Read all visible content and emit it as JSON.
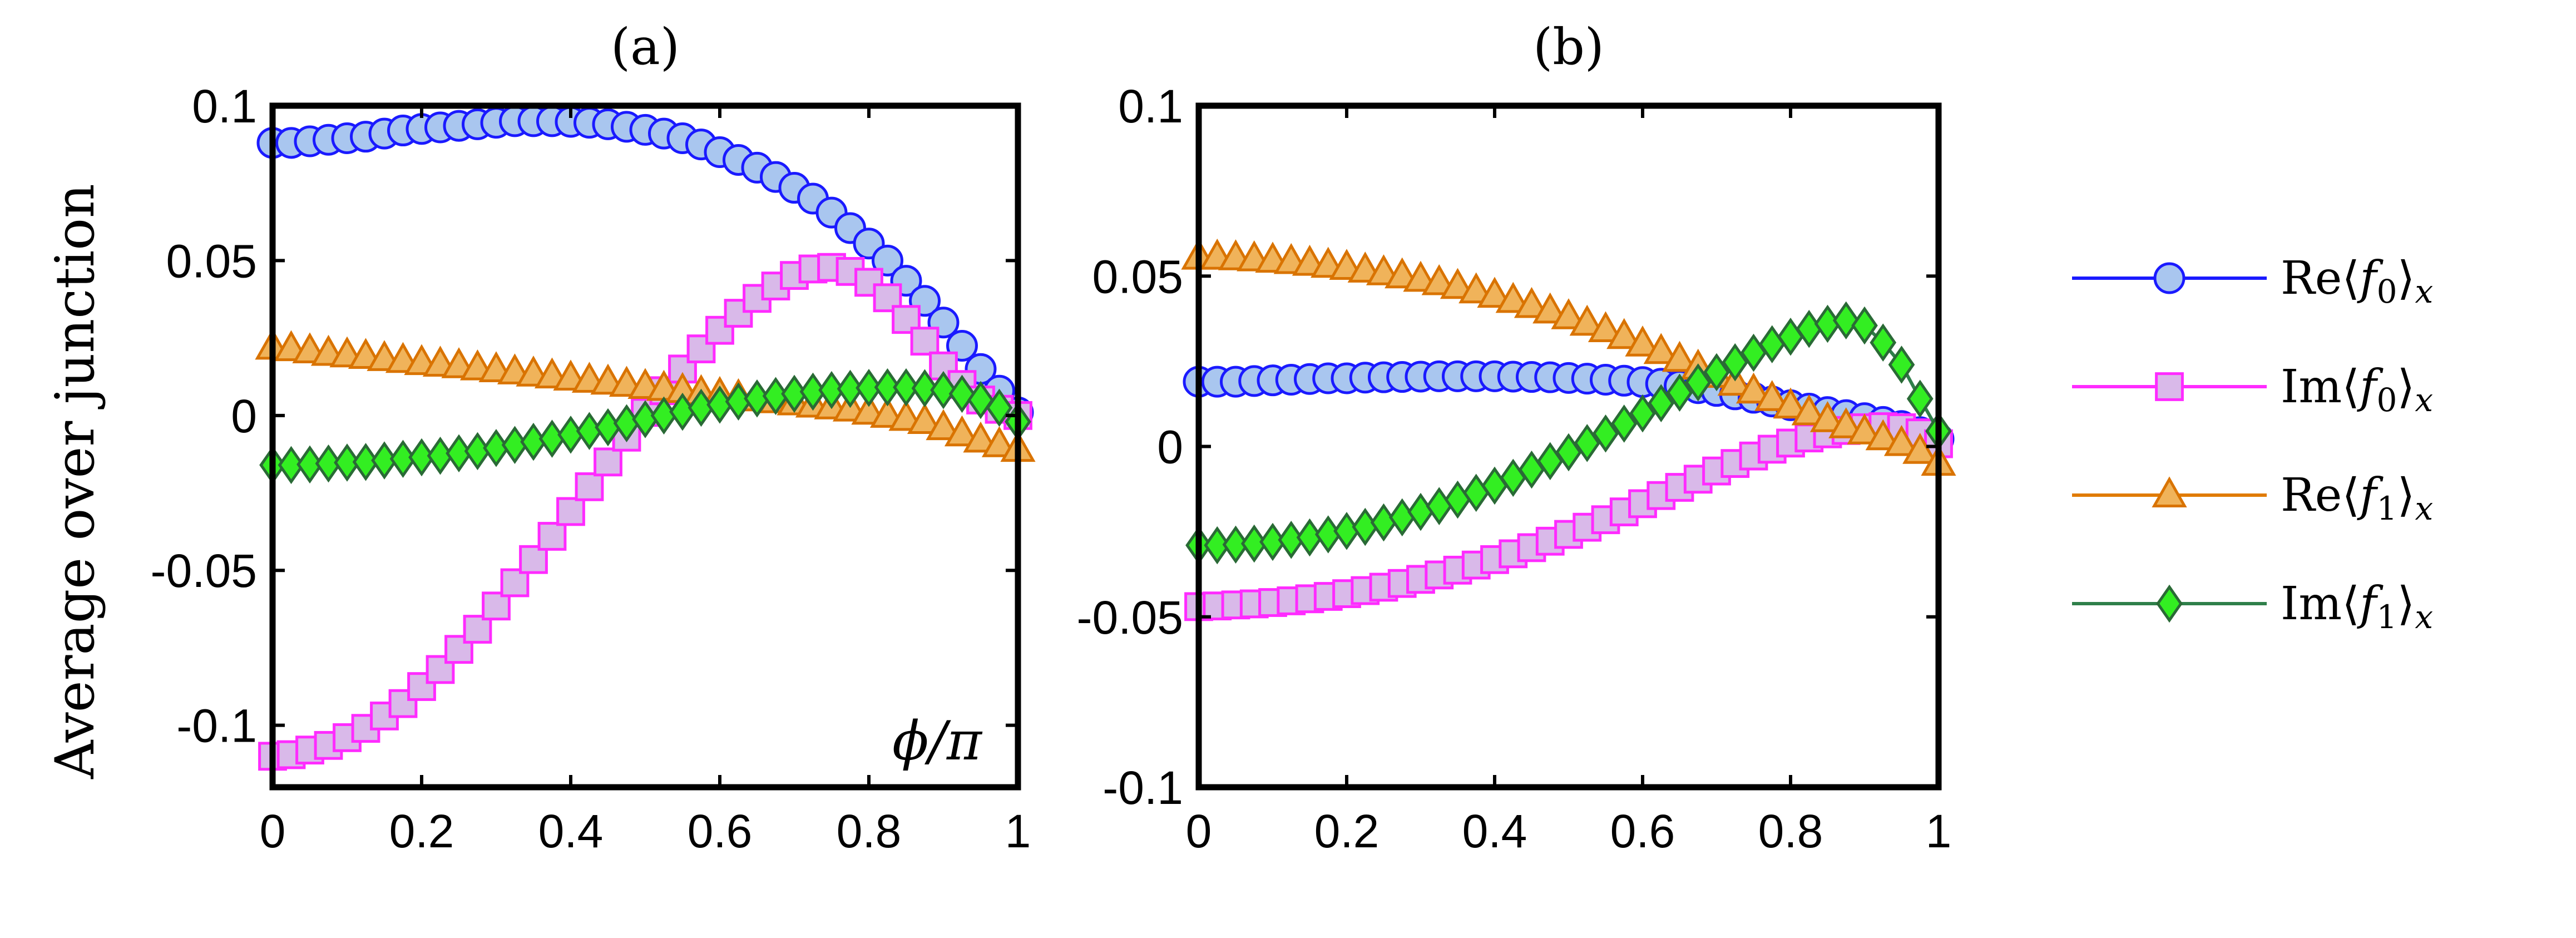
{
  "figure": {
    "ylabel": "Average over junction",
    "legend": [
      {
        "key": "re_f0",
        "prefix": "Re",
        "f": "f",
        "sub": "0",
        "suffix": "x"
      },
      {
        "key": "im_f0",
        "prefix": "Im",
        "f": "f",
        "sub": "0",
        "suffix": "x"
      },
      {
        "key": "re_f1",
        "prefix": "Re",
        "f": "f",
        "sub": "1",
        "suffix": "x"
      },
      {
        "key": "im_f1",
        "prefix": "Im",
        "f": "f",
        "sub": "1",
        "suffix": "x"
      }
    ]
  },
  "styles": {
    "re_f0": {
      "line": "#1a1aff",
      "fill": "#a9c6ef",
      "stroke": "#1a1aff",
      "marker": "circle"
    },
    "im_f0": {
      "line": "#ff2bff",
      "fill": "#d9b9e9",
      "stroke": "#ff2bff",
      "marker": "square"
    },
    "re_f1": {
      "line": "#e07b00",
      "fill": "#f0b35a",
      "stroke": "#d97300",
      "marker": "triangle"
    },
    "im_f1": {
      "line": "#2f7f4a",
      "fill": "#33ee22",
      "stroke": "#2a6a36",
      "marker": "diamond"
    }
  },
  "chart_data": [
    {
      "id": "a",
      "type": "line",
      "title": "(a)",
      "annotation": "ϕ/π",
      "xlabel": "",
      "ylabel": "Average over junction",
      "xlim": [
        0,
        1
      ],
      "ylim": [
        -0.12,
        0.1
      ],
      "xticks": [
        "0",
        "0.2",
        "0.4",
        "0.6",
        "0.8",
        "1"
      ],
      "yticks": [
        "0.1",
        "0.05",
        "0",
        "-0.05",
        "-0.1"
      ],
      "ytick_values": [
        0.1,
        0.05,
        0,
        -0.05,
        -0.1
      ],
      "xtick_values": [
        0,
        0.2,
        0.4,
        0.6,
        0.8,
        1
      ],
      "x_step": 0.025,
      "series": [
        {
          "key": "re_f0",
          "name": "Re⟨f0⟩x",
          "values": [
            0.088,
            0.088,
            0.0885,
            0.089,
            0.0895,
            0.09,
            0.091,
            0.092,
            0.0925,
            0.093,
            0.0935,
            0.094,
            0.0945,
            0.095,
            0.095,
            0.095,
            0.0948,
            0.0945,
            0.094,
            0.0932,
            0.0922,
            0.091,
            0.0895,
            0.0875,
            0.085,
            0.0825,
            0.08,
            0.077,
            0.0735,
            0.07,
            0.0655,
            0.0605,
            0.0555,
            0.05,
            0.0435,
            0.037,
            0.03,
            0.0225,
            0.015,
            0.008,
            0.001
          ]
        },
        {
          "key": "im_f0",
          "name": "Im⟨f0⟩x",
          "values": [
            -0.11,
            -0.1095,
            -0.108,
            -0.1065,
            -0.104,
            -0.101,
            -0.097,
            -0.093,
            -0.0875,
            -0.082,
            -0.0755,
            -0.069,
            -0.0615,
            -0.054,
            -0.0465,
            -0.039,
            -0.031,
            -0.023,
            -0.015,
            -0.007,
            0.001,
            0.008,
            0.015,
            0.0215,
            0.0275,
            0.033,
            0.0378,
            0.0418,
            0.0452,
            0.0473,
            0.0478,
            0.0465,
            0.043,
            0.038,
            0.031,
            0.024,
            0.016,
            0.01,
            0.005,
            0.002,
            0.0
          ]
        },
        {
          "key": "re_f1",
          "name": "Re⟨f1⟩x",
          "values": [
            0.022,
            0.0215,
            0.0208,
            0.02,
            0.0195,
            0.019,
            0.0183,
            0.0177,
            0.017,
            0.0165,
            0.016,
            0.0153,
            0.0147,
            0.014,
            0.0133,
            0.0127,
            0.012,
            0.0113,
            0.0107,
            0.01,
            0.0093,
            0.0087,
            0.008,
            0.0073,
            0.0067,
            0.006,
            0.0053,
            0.0047,
            0.004,
            0.0033,
            0.0027,
            0.002,
            0.001,
            0.0,
            -0.001,
            -0.002,
            -0.004,
            -0.006,
            -0.008,
            -0.0095,
            -0.011
          ]
        },
        {
          "key": "im_f1",
          "name": "Im⟨f1⟩x",
          "values": [
            -0.016,
            -0.016,
            -0.0158,
            -0.0155,
            -0.0152,
            -0.015,
            -0.0145,
            -0.014,
            -0.0135,
            -0.013,
            -0.0122,
            -0.0115,
            -0.0105,
            -0.0095,
            -0.0085,
            -0.0075,
            -0.0062,
            -0.005,
            -0.0038,
            -0.0025,
            -0.0012,
            0.0,
            0.0012,
            0.0025,
            0.0035,
            0.0045,
            0.0055,
            0.0063,
            0.007,
            0.0077,
            0.0082,
            0.0086,
            0.0089,
            0.0091,
            0.0091,
            0.0088,
            0.0082,
            0.007,
            0.005,
            0.0025,
            -0.002
          ]
        }
      ]
    },
    {
      "id": "b",
      "type": "line",
      "title": "(b)",
      "xlabel": "",
      "ylabel": "",
      "xlim": [
        0,
        1
      ],
      "ylim": [
        -0.1,
        0.1
      ],
      "xticks": [
        "0",
        "0.2",
        "0.4",
        "0.6",
        "0.8",
        "1"
      ],
      "yticks": [
        "0.1",
        "0.05",
        "0",
        "-0.05",
        "-0.1"
      ],
      "ytick_values": [
        0.1,
        0.05,
        0,
        -0.05,
        -0.1
      ],
      "xtick_values": [
        0,
        0.2,
        0.4,
        0.6,
        0.8,
        1
      ],
      "x_step": 0.025,
      "series": [
        {
          "key": "re_f0",
          "name": "Re⟨f0⟩x",
          "values": [
            0.019,
            0.019,
            0.019,
            0.0192,
            0.0194,
            0.0196,
            0.0198,
            0.02,
            0.02,
            0.0202,
            0.0203,
            0.0204,
            0.0205,
            0.0206,
            0.0206,
            0.0206,
            0.0206,
            0.0205,
            0.0204,
            0.0203,
            0.0201,
            0.0199,
            0.0196,
            0.0193,
            0.0189,
            0.0184,
            0.0178,
            0.0171,
            0.0163,
            0.0153,
            0.0143,
            0.0132,
            0.0121,
            0.0111,
            0.0101,
            0.0092,
            0.0083,
            0.0072,
            0.006,
            0.0042,
            0.0022
          ]
        },
        {
          "key": "im_f0",
          "name": "Im⟨f0⟩x",
          "values": [
            -0.047,
            -0.0468,
            -0.0465,
            -0.0462,
            -0.0458,
            -0.0453,
            -0.0447,
            -0.044,
            -0.0432,
            -0.0423,
            -0.0413,
            -0.0402,
            -0.039,
            -0.0377,
            -0.0363,
            -0.0348,
            -0.0332,
            -0.0315,
            -0.0297,
            -0.0278,
            -0.0258,
            -0.0237,
            -0.0215,
            -0.0192,
            -0.0168,
            -0.0144,
            -0.012,
            -0.0096,
            -0.0072,
            -0.005,
            -0.0028,
            -0.0008,
            0.001,
            0.0025,
            0.0037,
            0.0047,
            0.0055,
            0.0058,
            0.0055,
            0.004,
            0.0008
          ]
        },
        {
          "key": "re_f1",
          "name": "Re⟨f1⟩x",
          "values": [
            0.0555,
            0.0555,
            0.0553,
            0.055,
            0.0546,
            0.0542,
            0.0537,
            0.0531,
            0.0525,
            0.0517,
            0.0509,
            0.05,
            0.049,
            0.048,
            0.0469,
            0.0456,
            0.0443,
            0.0428,
            0.0413,
            0.0397,
            0.038,
            0.0361,
            0.0342,
            0.0322,
            0.03,
            0.0278,
            0.0255,
            0.0232,
            0.0208,
            0.0185,
            0.0162,
            0.014,
            0.0118,
            0.0098,
            0.0078,
            0.006,
            0.0042,
            0.0025,
            0.0008,
            -0.0015,
            -0.005
          ]
        },
        {
          "key": "im_f1",
          "name": "Im⟨f1⟩x",
          "values": [
            -0.029,
            -0.029,
            -0.0288,
            -0.0285,
            -0.028,
            -0.0274,
            -0.0267,
            -0.0258,
            -0.0248,
            -0.0236,
            -0.0223,
            -0.0208,
            -0.0192,
            -0.0175,
            -0.0156,
            -0.0136,
            -0.0115,
            -0.0092,
            -0.0068,
            -0.0043,
            -0.0017,
            0.001,
            0.0038,
            0.0067,
            0.0097,
            0.0127,
            0.0158,
            0.0188,
            0.0218,
            0.0247,
            0.0275,
            0.03,
            0.0322,
            0.0345,
            0.036,
            0.037,
            0.0355,
            0.0305,
            0.024,
            0.014,
            0.0045
          ]
        }
      ]
    }
  ]
}
